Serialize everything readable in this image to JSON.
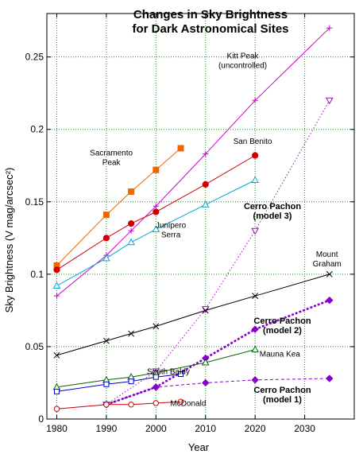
{
  "chart_data": {
    "type": "line",
    "title": [
      "Changes in Sky Brightness",
      "for Dark Astronomical Sites"
    ],
    "xlabel": "Year",
    "ylabel": "Sky Brightness (V mag/arcsec²)",
    "xlim": [
      1978,
      2040
    ],
    "ylim": [
      0,
      0.28
    ],
    "xticks": [
      1980,
      1990,
      2000,
      2010,
      2020,
      2030
    ],
    "yticks": [
      0,
      0.05,
      0.1,
      0.15,
      0.2,
      0.25
    ],
    "ytick_labels": [
      "0",
      "0.05",
      "0.1",
      "0.15",
      "0.2",
      "0.25"
    ],
    "grid": true,
    "series": [
      {
        "name": "Kitt Peak (uncontrolled)",
        "color": "#cc00cc",
        "marker": "plus",
        "style": "solid",
        "x": [
          1980,
          1990,
          1995,
          2000,
          2010,
          2020,
          2035
        ],
        "y": [
          0.085,
          0.113,
          0.13,
          0.147,
          0.183,
          0.22,
          0.27
        ]
      },
      {
        "name": "Sacramento Peak",
        "color": "#ee6600",
        "marker": "square-filled",
        "style": "solid",
        "x": [
          1980,
          1990,
          1995,
          2000,
          2005
        ],
        "y": [
          0.106,
          0.141,
          0.157,
          0.172,
          0.187
        ]
      },
      {
        "name": "San Benito",
        "color": "#cc0000",
        "marker": "circle-filled",
        "style": "solid",
        "x": [
          1980,
          1990,
          1995,
          2000,
          2010,
          2020
        ],
        "y": [
          0.103,
          0.125,
          0.135,
          0.143,
          0.162,
          0.182
        ]
      },
      {
        "name": "Junipero Serra",
        "color": "#00aacc",
        "marker": "triangle-open",
        "style": "solid",
        "x": [
          1980,
          1990,
          1995,
          2000,
          2010,
          2020
        ],
        "y": [
          0.092,
          0.111,
          0.122,
          0.131,
          0.148,
          0.165
        ]
      },
      {
        "name": "Cerro Pachon (model 3)",
        "color": "#aa00cc",
        "marker": "triangle-down-open",
        "style": "dotted",
        "x": [
          1990,
          2000,
          2010,
          2020,
          2035
        ],
        "y": [
          0.01,
          0.033,
          0.076,
          0.13,
          0.22
        ]
      },
      {
        "name": "Mount Graham",
        "color": "#000000",
        "marker": "x",
        "style": "solid",
        "x": [
          1980,
          1990,
          1995,
          2000,
          2010,
          2020,
          2035
        ],
        "y": [
          0.044,
          0.054,
          0.059,
          0.064,
          0.075,
          0.085,
          0.1
        ]
      },
      {
        "name": "Cerro Pachon (model 2)",
        "color": "#8800cc",
        "marker": "diamond-filled",
        "style": "dashed-bold",
        "x": [
          1990,
          2000,
          2010,
          2020,
          2035
        ],
        "y": [
          0.01,
          0.022,
          0.042,
          0.062,
          0.082
        ]
      },
      {
        "name": "Mauna Kea",
        "color": "#006600",
        "marker": "triangle-open",
        "style": "solid",
        "x": [
          1980,
          1990,
          1995,
          2000,
          2010,
          2020
        ],
        "y": [
          0.022,
          0.027,
          0.029,
          0.032,
          0.039,
          0.048
        ]
      },
      {
        "name": "South Baldy",
        "color": "#0000cc",
        "marker": "square-open",
        "style": "solid",
        "x": [
          1980,
          1990,
          1995,
          2000,
          2005
        ],
        "y": [
          0.019,
          0.024,
          0.026,
          0.029,
          0.031
        ]
      },
      {
        "name": "Cerro Pachon (model 1)",
        "color": "#8800cc",
        "marker": "diamond-filled",
        "style": "dashed",
        "x": [
          1990,
          2000,
          2010,
          2020,
          2035
        ],
        "y": [
          0.01,
          0.022,
          0.025,
          0.027,
          0.028
        ]
      },
      {
        "name": "McDonald",
        "color": "#cc0000",
        "marker": "circle-open",
        "style": "solid",
        "x": [
          1980,
          1990,
          1995,
          2000,
          2005
        ],
        "y": [
          0.007,
          0.01,
          0.01,
          0.011,
          0.012
        ]
      }
    ],
    "annotations": [
      {
        "lines": [
          "Kitt Peak",
          "(uncontrolled)"
        ],
        "x": 2017.5,
        "y": 0.249,
        "bold": false
      },
      {
        "lines": [
          "Sacramento",
          "Peak"
        ],
        "x": 1991,
        "y": 0.182,
        "bold": false
      },
      {
        "lines": [
          "San Benito"
        ],
        "x": 2019.5,
        "y": 0.19,
        "bold": false
      },
      {
        "lines": [
          "Junipero",
          "Serra"
        ],
        "x": 2003,
        "y": 0.132,
        "bold": false
      },
      {
        "lines": [
          "Cerro Pachon",
          "(model 3)"
        ],
        "x": 2023.5,
        "y": 0.145,
        "bold": true
      },
      {
        "lines": [
          "Mount",
          "Graham"
        ],
        "x": 2034.5,
        "y": 0.112,
        "bold": false
      },
      {
        "lines": [
          "Cerro Pachon",
          "(model 2)"
        ],
        "x": 2025.5,
        "y": 0.066,
        "bold": true
      },
      {
        "lines": [
          "Mauna Kea"
        ],
        "x": 2025,
        "y": 0.043,
        "bold": false
      },
      {
        "lines": [
          "South Baldy"
        ],
        "x": 2002.5,
        "y": 0.031,
        "bold": false
      },
      {
        "lines": [
          "Cerro Pachon",
          "(model 1)"
        ],
        "x": 2025.5,
        "y": 0.018,
        "bold": true
      },
      {
        "lines": [
          "McDonald"
        ],
        "x": 2006.5,
        "y": 0.009,
        "bold": false
      }
    ]
  }
}
